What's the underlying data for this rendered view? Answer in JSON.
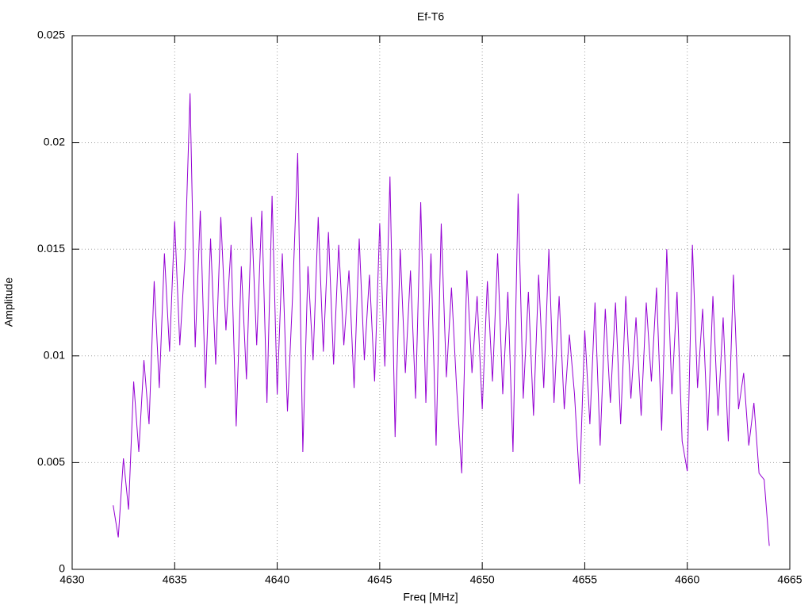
{
  "chart_data": {
    "type": "line",
    "title": "Ef-T6",
    "xlabel": "Freq [MHz]",
    "ylabel": "Amplitude",
    "color": "#9400d3",
    "grid": true,
    "xlim": [
      4630,
      4665
    ],
    "xticks": [
      4630,
      4635,
      4640,
      4645,
      4650,
      4655,
      4660,
      4665
    ],
    "ylim": [
      0,
      0.025
    ],
    "yticks": [
      0,
      0.005,
      0.01,
      0.015,
      0.02,
      0.025
    ],
    "x": [
      4632,
      4632.25,
      4632.5,
      4632.75,
      4633,
      4633.25,
      4633.5,
      4633.75,
      4634,
      4634.25,
      4634.5,
      4634.75,
      4635,
      4635.25,
      4635.5,
      4635.75,
      4636,
      4636.25,
      4636.5,
      4636.75,
      4637,
      4637.25,
      4637.5,
      4637.75,
      4638,
      4638.25,
      4638.5,
      4638.75,
      4639,
      4639.25,
      4639.5,
      4639.75,
      4640,
      4640.25,
      4640.5,
      4640.75,
      4641,
      4641.25,
      4641.5,
      4641.75,
      4642,
      4642.25,
      4642.5,
      4642.75,
      4643,
      4643.25,
      4643.5,
      4643.75,
      4644,
      4644.25,
      4644.5,
      4644.75,
      4645,
      4645.25,
      4645.5,
      4645.75,
      4646,
      4646.25,
      4646.5,
      4646.75,
      4647,
      4647.25,
      4647.5,
      4647.75,
      4648,
      4648.25,
      4648.5,
      4648.75,
      4649,
      4649.25,
      4649.5,
      4649.75,
      4650,
      4650.25,
      4650.5,
      4650.75,
      4651,
      4651.25,
      4651.5,
      4651.75,
      4652,
      4652.25,
      4652.5,
      4652.75,
      4653,
      4653.25,
      4653.5,
      4653.75,
      4654,
      4654.25,
      4654.5,
      4654.75,
      4655,
      4655.25,
      4655.5,
      4655.75,
      4656,
      4656.25,
      4656.5,
      4656.75,
      4657,
      4657.25,
      4657.5,
      4657.75,
      4658,
      4658.25,
      4658.5,
      4658.75,
      4659,
      4659.25,
      4659.5,
      4659.75,
      4660,
      4660.25,
      4660.5,
      4660.75,
      4661,
      4661.25,
      4661.5,
      4661.75,
      4662,
      4662.25,
      4662.5,
      4662.75,
      4663,
      4663.25,
      4663.5,
      4663.75,
      4664
    ],
    "values": [
      0.003,
      0.0015,
      0.0052,
      0.0028,
      0.0088,
      0.0055,
      0.0098,
      0.0068,
      0.0135,
      0.0085,
      0.0148,
      0.0102,
      0.0163,
      0.0105,
      0.0145,
      0.0223,
      0.0104,
      0.0168,
      0.0085,
      0.0155,
      0.0096,
      0.0165,
      0.0112,
      0.0152,
      0.0067,
      0.0142,
      0.0089,
      0.0165,
      0.0105,
      0.0168,
      0.0078,
      0.0175,
      0.0082,
      0.0148,
      0.0074,
      0.0128,
      0.0195,
      0.0055,
      0.0142,
      0.0098,
      0.0165,
      0.0102,
      0.0158,
      0.0096,
      0.0152,
      0.0105,
      0.014,
      0.0085,
      0.0155,
      0.0098,
      0.0138,
      0.0088,
      0.0162,
      0.0095,
      0.0184,
      0.0062,
      0.015,
      0.0092,
      0.014,
      0.008,
      0.0172,
      0.0078,
      0.0148,
      0.0058,
      0.0162,
      0.009,
      0.0132,
      0.0085,
      0.0045,
      0.014,
      0.0092,
      0.0128,
      0.0075,
      0.0135,
      0.0088,
      0.0148,
      0.0082,
      0.013,
      0.0055,
      0.0176,
      0.008,
      0.013,
      0.0072,
      0.0138,
      0.0085,
      0.015,
      0.0078,
      0.0128,
      0.0075,
      0.011,
      0.0082,
      0.004,
      0.0112,
      0.0068,
      0.0125,
      0.0058,
      0.0122,
      0.0078,
      0.0125,
      0.0068,
      0.0128,
      0.008,
      0.0118,
      0.0072,
      0.0125,
      0.0088,
      0.0132,
      0.0065,
      0.015,
      0.0082,
      0.013,
      0.006,
      0.0046,
      0.0152,
      0.0085,
      0.0122,
      0.0065,
      0.0128,
      0.0072,
      0.0118,
      0.006,
      0.0138,
      0.0075,
      0.0092,
      0.0058,
      0.0078,
      0.0045,
      0.0042,
      0.0011
    ]
  }
}
